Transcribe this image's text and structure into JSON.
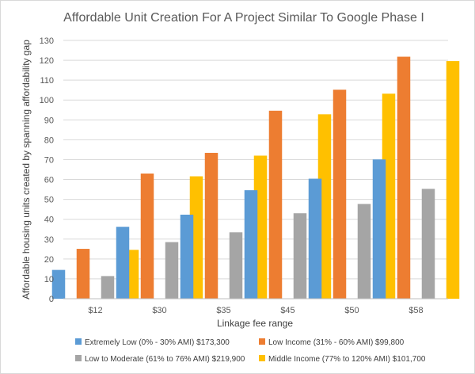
{
  "chart_data": {
    "type": "bar",
    "title": "Affordable Unit Creation For A Project Similar To Google Phase I",
    "xlabel": "Linkage fee range",
    "ylabel": "Affordable housing units created by spanning affordability gap",
    "ylim": [
      0,
      130
    ],
    "ytick_step": 10,
    "grid": true,
    "legend_position": "bottom",
    "categories": [
      "$12",
      "$30",
      "$35",
      "$45",
      "$50",
      "$58"
    ],
    "series": [
      {
        "name": "Extremely Low (0% - 30% AMI) $173,300",
        "color": "#5b9bd5",
        "values": [
          14.5,
          36.2,
          42.3,
          54.6,
          60.4,
          70.1
        ]
      },
      {
        "name": "Low Income (31% - 60% AMI) $99,800",
        "color": "#ed7d31",
        "values": [
          25.1,
          63.0,
          73.4,
          94.6,
          105.2,
          121.8
        ]
      },
      {
        "name": "Low to Moderate (61% to 76% AMI) $219,900",
        "color": "#a5a5a5",
        "values": [
          11.4,
          28.5,
          33.4,
          43.0,
          47.7,
          55.3
        ]
      },
      {
        "name": "Middle Income (77% to 120% AMI) $101,700",
        "color": "#ffc000",
        "values": [
          24.6,
          61.6,
          72.0,
          92.8,
          103.2,
          119.6
        ]
      }
    ]
  }
}
